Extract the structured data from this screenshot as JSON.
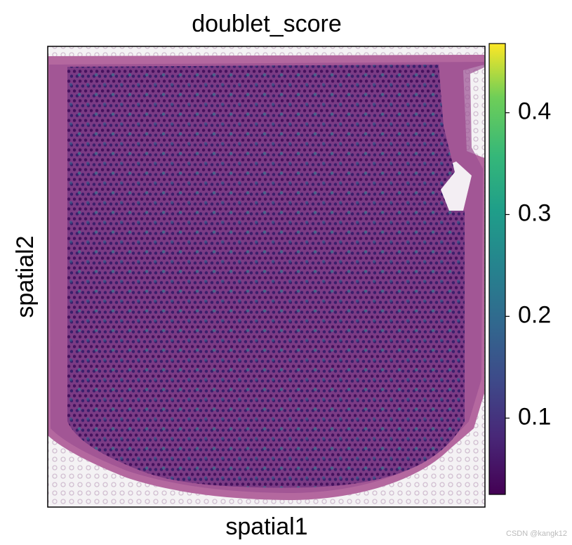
{
  "chart_data": {
    "type": "spatial",
    "title": "doublet_score",
    "x_label": "spatial1",
    "y_label": "spatial2",
    "colorbar": {
      "clim": [
        0.025,
        0.468
      ],
      "ticks": [
        0.1,
        0.2,
        0.3,
        0.4
      ],
      "colormap": "viridis"
    },
    "watermark": "CSDN @kangk12"
  }
}
